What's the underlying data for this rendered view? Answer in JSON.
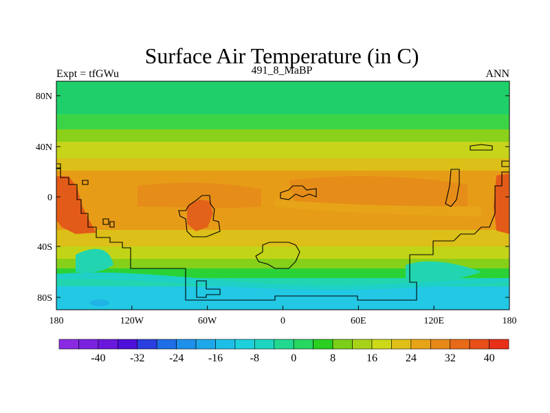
{
  "title": "Surface Air Temperature (in C)",
  "left_label": "Expt = tfGWu",
  "center_label": "491_8_MaBP",
  "right_label": "ANN",
  "map": {
    "type": "filled-contour",
    "projection": "cylindrical-equidistant",
    "lon_range": [
      -180,
      180
    ],
    "lat_range": [
      -90,
      90
    ],
    "lon_ticks": [
      "180",
      "120W",
      "60W",
      "0",
      "60E",
      "120E",
      "180"
    ],
    "lat_ticks": [
      "80N",
      "40N",
      "0",
      "40S",
      "80S"
    ],
    "features": [
      "paleogeographic coastlines",
      "continents warm in tropics",
      "cold south polar region"
    ]
  },
  "colorbar": {
    "labels": [
      "-40",
      "-32",
      "-24",
      "-16",
      "-8",
      "0",
      "8",
      "16",
      "24",
      "32",
      "40"
    ],
    "colors": [
      "#8a2be2",
      "#7a22e0",
      "#6a18dc",
      "#4e10d8",
      "#2a3fe0",
      "#1e6ee6",
      "#1e90ea",
      "#1ea8ea",
      "#1ebfe6",
      "#1ed0dc",
      "#1ed6c0",
      "#22d890",
      "#28d760",
      "#2acf20",
      "#7ccf18",
      "#a8d218",
      "#ccd818",
      "#e0c018",
      "#e8a418",
      "#e88818",
      "#e86a18",
      "#e84e18",
      "#e83018"
    ]
  },
  "colors": {
    "polar_north": "#1fd06a",
    "polar_south": "#22c8e4",
    "tropic": "#e79c18",
    "hot_land": "#e35b18",
    "coast": "#000000"
  }
}
